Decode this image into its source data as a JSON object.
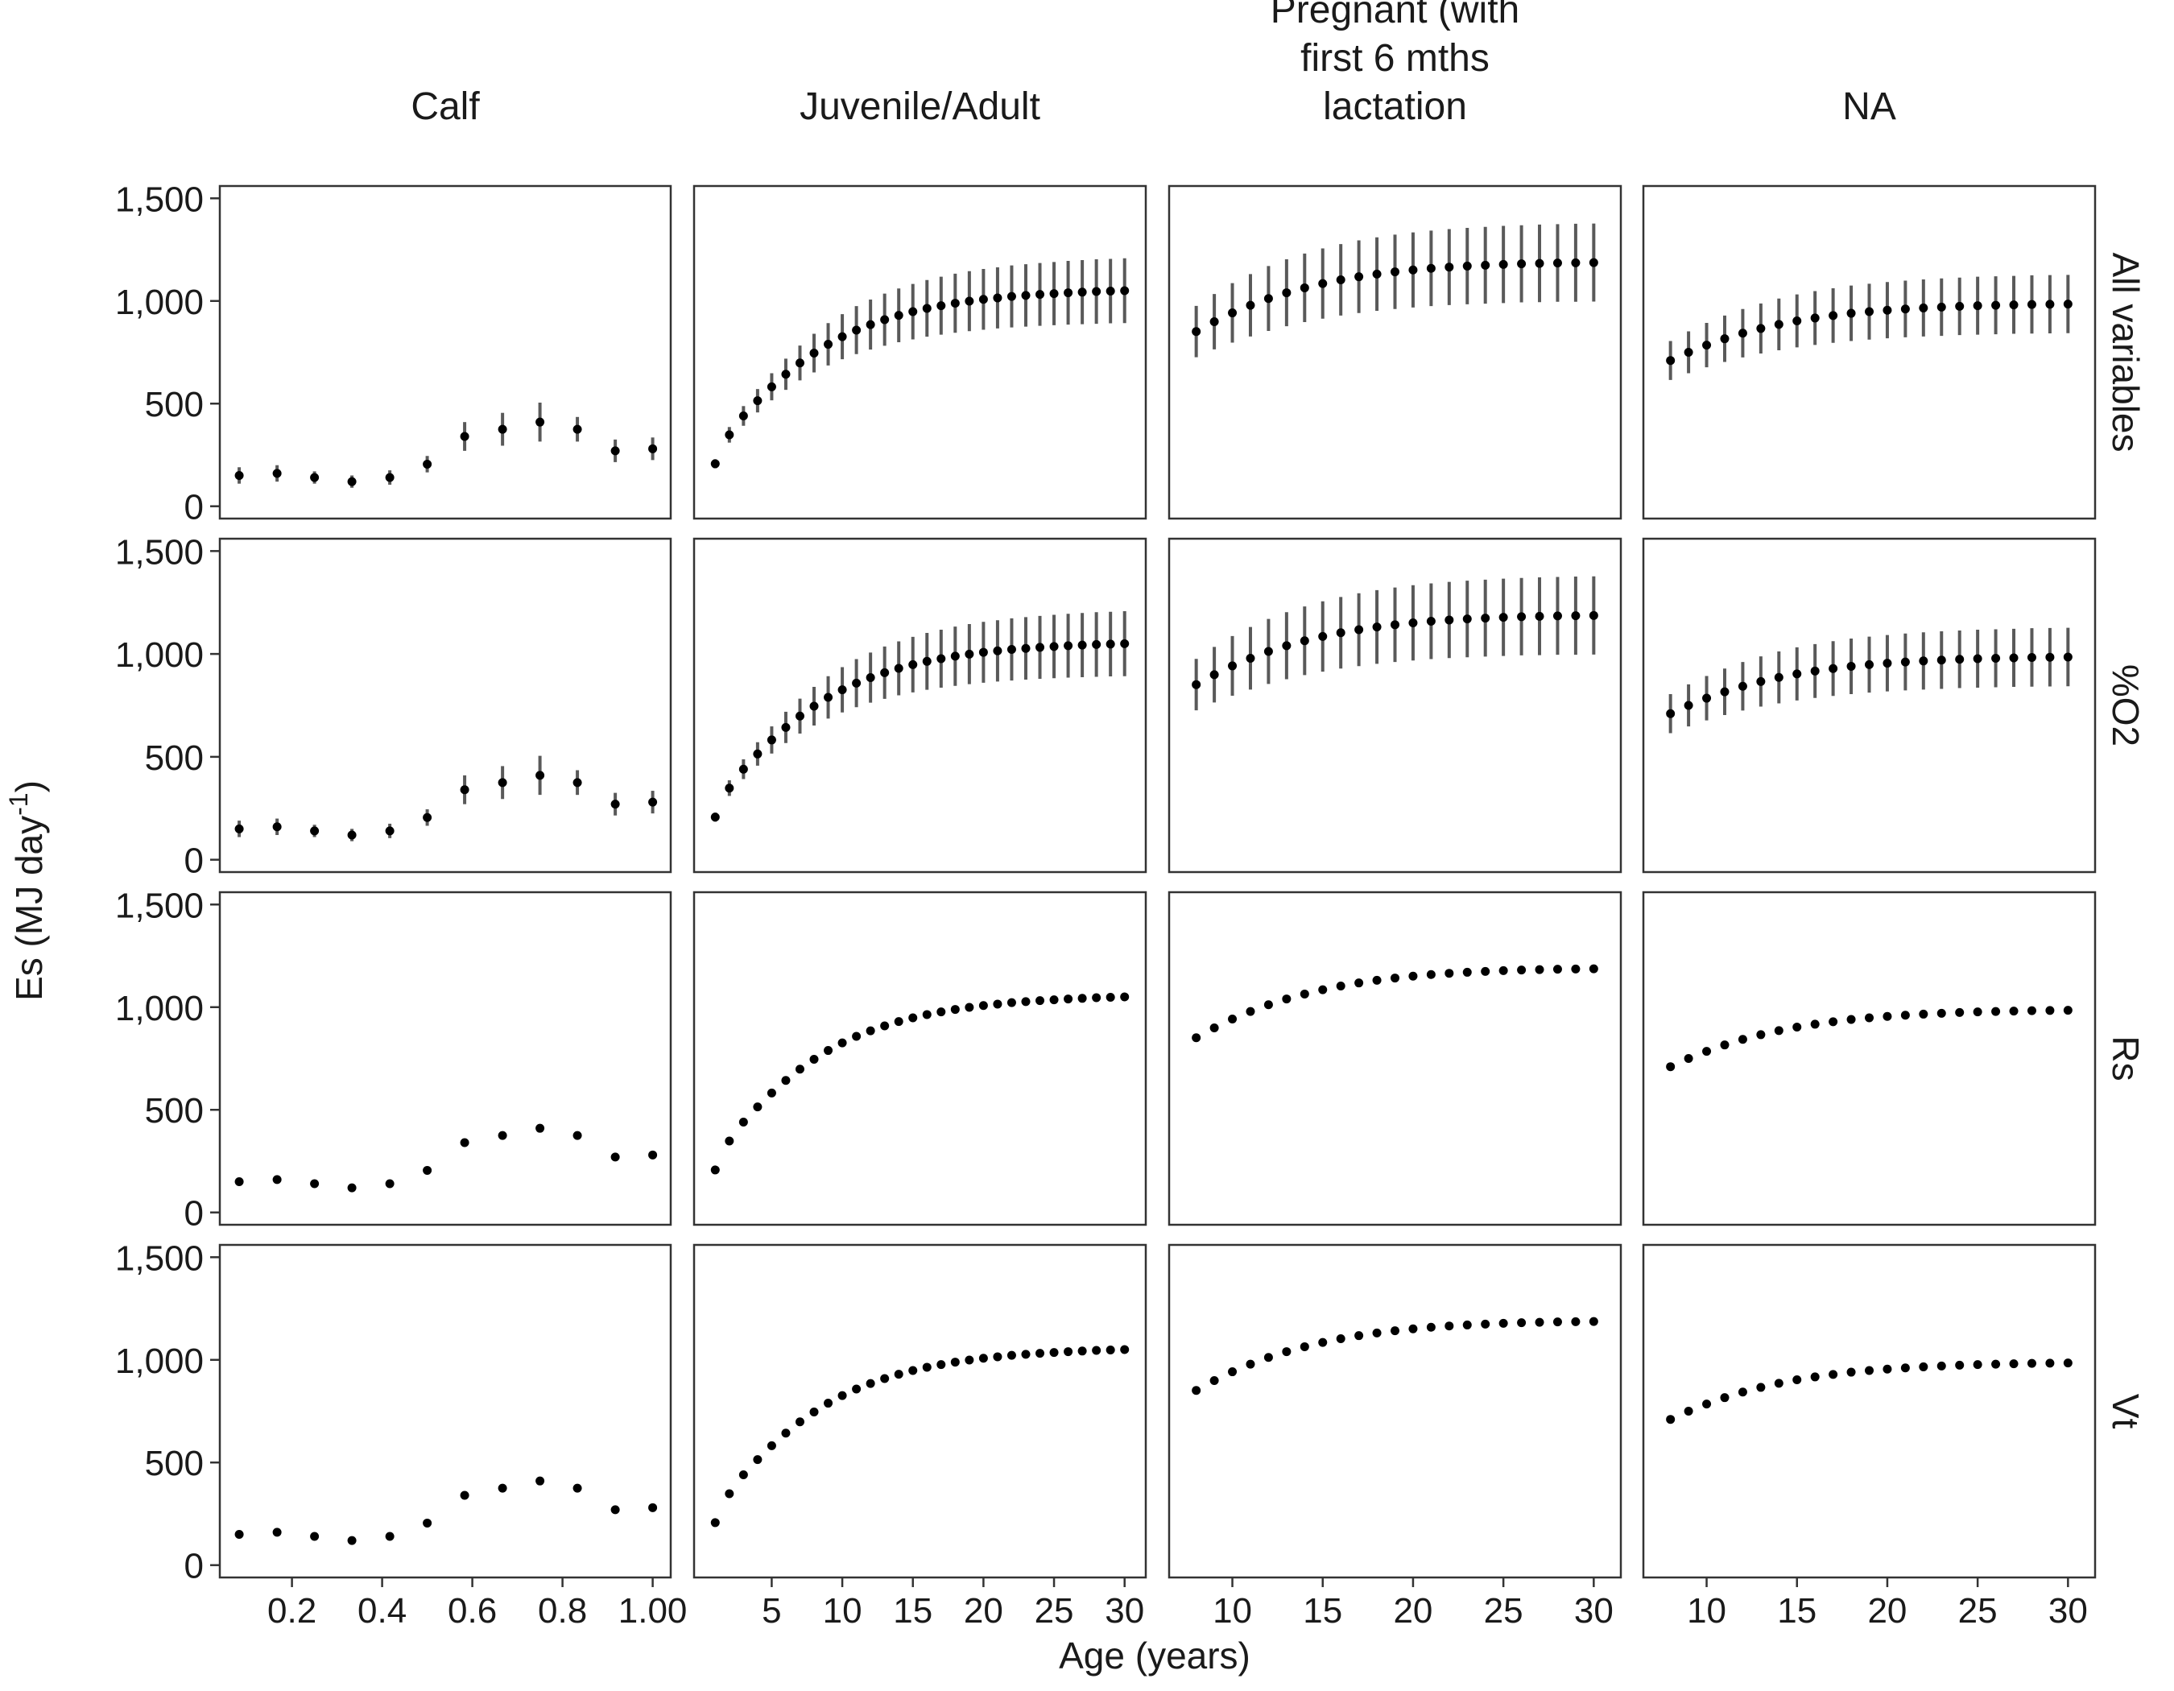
{
  "chart_data": {
    "type": "scatter",
    "ylabel": "Es (MJ day",
    "ylabel_sup": "-1",
    "ylabel_close": ")",
    "xlabel": "Age (years)",
    "ylim": [
      -60,
      1560
    ],
    "y_ticks": [
      0,
      500,
      1000,
      1500
    ],
    "y_tick_labels": [
      "0",
      "500",
      "1,000",
      "1,500"
    ],
    "columns": [
      {
        "title_lines": [
          "Calf"
        ],
        "xlim": [
          0.04,
          1.04
        ],
        "x_ticks": [
          0.2,
          0.4,
          0.6,
          0.8,
          1.0
        ],
        "x_tick_labels": [
          "0.2",
          "0.4",
          "0.6",
          "0.8",
          "1.00"
        ],
        "x": [
          0.083,
          0.167,
          0.25,
          0.333,
          0.417,
          0.5,
          0.583,
          0.667,
          0.75,
          0.833,
          0.917,
          1.0
        ],
        "y": [
          150,
          160,
          140,
          120,
          140,
          205,
          340,
          375,
          410,
          375,
          270,
          280
        ],
        "err": [
          40,
          40,
          30,
          30,
          35,
          40,
          70,
          80,
          95,
          60,
          55,
          55
        ]
      },
      {
        "title_lines": [
          "Juvenile/Adult"
        ],
        "xlim": [
          -0.5,
          31.5
        ],
        "x_ticks": [
          5,
          10,
          15,
          20,
          25,
          30
        ],
        "x_tick_labels": [
          "5",
          "10",
          "15",
          "20",
          "25",
          "30"
        ],
        "x": [
          1,
          2,
          3,
          4,
          5,
          6,
          7,
          8,
          9,
          10,
          11,
          12,
          13,
          14,
          15,
          16,
          17,
          18,
          19,
          20,
          21,
          22,
          23,
          24,
          25,
          26,
          27,
          28,
          29,
          30
        ],
        "y": [
          207,
          348,
          440,
          514,
          582,
          643,
          698,
          746,
          789,
          826,
          858,
          885,
          909,
          930,
          948,
          964,
          977,
          989,
          999,
          1008,
          1015,
          1022,
          1027,
          1032,
          1036,
          1040,
          1043,
          1046,
          1048,
          1050
        ],
        "err": [
          22,
          38,
          48,
          57,
          66,
          76,
          85,
          94,
          103,
          110,
          117,
          122,
          127,
          131,
          135,
          138,
          141,
          144,
          146,
          148,
          149,
          151,
          152,
          153,
          154,
          155,
          156,
          157,
          157,
          158
        ]
      },
      {
        "title_lines": [
          "Pregnant (with",
          "first 6 mths",
          "lactation"
        ],
        "xlim": [
          6.5,
          31.5
        ],
        "x_ticks": [
          10,
          15,
          20,
          25,
          30
        ],
        "x_tick_labels": [
          "10",
          "15",
          "20",
          "25",
          "30"
        ],
        "x": [
          8,
          9,
          10,
          11,
          12,
          13,
          14,
          15,
          16,
          17,
          18,
          19,
          20,
          21,
          22,
          23,
          24,
          25,
          26,
          27,
          28,
          29,
          30
        ],
        "y": [
          851,
          899,
          942,
          979,
          1012,
          1040,
          1064,
          1085,
          1103,
          1118,
          1131,
          1142,
          1151,
          1159,
          1165,
          1170,
          1174,
          1178,
          1181,
          1183,
          1185,
          1186,
          1187
        ],
        "err": [
          125,
          135,
          145,
          152,
          158,
          163,
          167,
          171,
          174,
          177,
          179,
          181,
          183,
          184,
          185,
          186,
          187,
          188,
          188,
          189,
          189,
          190,
          190
        ]
      },
      {
        "title_lines": [
          "NA"
        ],
        "xlim": [
          6.5,
          31.5
        ],
        "x_ticks": [
          10,
          15,
          20,
          25,
          30
        ],
        "x_tick_labels": [
          "10",
          "15",
          "20",
          "25",
          "30"
        ],
        "x": [
          8,
          9,
          10,
          11,
          12,
          13,
          14,
          15,
          16,
          17,
          18,
          19,
          20,
          21,
          22,
          23,
          24,
          25,
          26,
          27,
          28,
          29,
          30
        ],
        "y": [
          710,
          750,
          785,
          816,
          843,
          866,
          886,
          903,
          917,
          929,
          940,
          948,
          955,
          961,
          966,
          970,
          974,
          977,
          979,
          981,
          983,
          984,
          985
        ],
        "err": [
          95,
          102,
          108,
          113,
          118,
          122,
          126,
          129,
          131,
          133,
          135,
          136,
          137,
          138,
          139,
          140,
          140,
          141,
          141,
          141,
          142,
          142,
          142
        ]
      }
    ],
    "rows": [
      {
        "label": "All variables",
        "error_bars": true
      },
      {
        "label": "%O2",
        "error_bars": true
      },
      {
        "label": "Rs",
        "error_bars": false
      },
      {
        "label": "Vt",
        "error_bars": false
      }
    ],
    "grid": false,
    "colors": {
      "point": "#000000",
      "errorbar": "#595959",
      "panel_border": "#333333",
      "axis": "#333333"
    }
  }
}
